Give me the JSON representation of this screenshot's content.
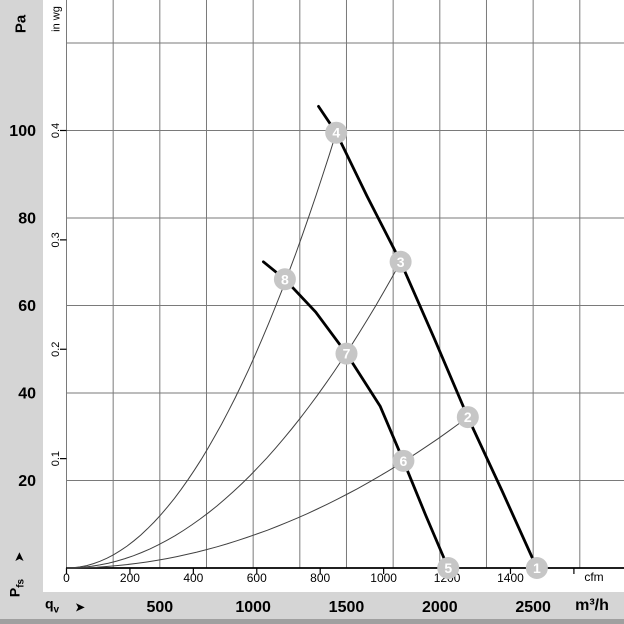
{
  "colors": {
    "band_gray": "#d5d5d5",
    "bottom_edge_gray": "#a0a0a0",
    "grid": "#7a7a7a",
    "baseline": "#000000",
    "tick": "#000000",
    "fan_curve": "#000000",
    "parabola": "#404040",
    "marker_fill": "#c6c6c6",
    "marker_text": "#ffffff",
    "label_text": "#000000"
  },
  "icons": {
    "qv_arrow": "➤",
    "pfs_arrow": "➤"
  },
  "chart_data": {
    "type": "line",
    "title": "",
    "description": "Fan performance curves: static pressure vs. volume flow, two speeds, with system resistance parabolas and numbered operating points",
    "axes": {
      "pa": {
        "unit": "Pa",
        "ticks": [
          20,
          40,
          60,
          80,
          100
        ],
        "grid_step": 20,
        "grid_max": 120,
        "range": [
          0,
          130
        ]
      },
      "inwg": {
        "unit": "in wg",
        "ticks": [
          0.1,
          0.2,
          0.3,
          0.4
        ],
        "pa_per_inwg": 250
      },
      "m3h": {
        "unit": "m³/h",
        "ticks": [
          500,
          1000,
          1500,
          2000,
          2500
        ],
        "grid_step": 250,
        "range": [
          0,
          2990
        ]
      },
      "cfm": {
        "unit": "cfm",
        "ticks": [
          0,
          200,
          400,
          600,
          800,
          1000,
          1200,
          1400
        ],
        "unlabeled_ticks": [
          1600
        ],
        "m3h_per_cfm": 1.699
      }
    },
    "ylabel": {
      "base": "P",
      "sub": "fs"
    },
    "xlabel": {
      "base": "q",
      "sub": "v"
    },
    "series": [
      {
        "name": "fan-curve-high-speed",
        "style": "thick",
        "points": [
          [
            1350,
            105.5
          ],
          [
            1445,
            99.5
          ],
          [
            1610,
            85
          ],
          [
            1790,
            70
          ],
          [
            1970,
            52.5
          ],
          [
            2150,
            34.5
          ],
          [
            2335,
            17.5
          ],
          [
            2520,
            0
          ]
        ]
      },
      {
        "name": "fan-curve-low-speed",
        "style": "thick",
        "points": [
          [
            1055,
            70
          ],
          [
            1170,
            66
          ],
          [
            1335,
            58.5
          ],
          [
            1500,
            49
          ],
          [
            1680,
            37
          ],
          [
            1805,
            24.5
          ],
          [
            1925,
            12
          ],
          [
            2045,
            0
          ]
        ]
      },
      {
        "name": "system-parabola-a",
        "style": "parabola",
        "end_q_m3h": 1445,
        "end_p_pa": 99.5
      },
      {
        "name": "system-parabola-b",
        "style": "parabola",
        "end_q_m3h": 1790,
        "end_p_pa": 70
      },
      {
        "name": "system-parabola-c",
        "style": "parabola",
        "end_q_m3h": 2150,
        "end_p_pa": 34.5
      }
    ],
    "operating_points": [
      {
        "label": "1",
        "q_m3h": 2520,
        "p_pa": 0
      },
      {
        "label": "2",
        "q_m3h": 2150,
        "p_pa": 34.5
      },
      {
        "label": "3",
        "q_m3h": 1790,
        "p_pa": 70
      },
      {
        "label": "4",
        "q_m3h": 1445,
        "p_pa": 99.5
      },
      {
        "label": "5",
        "q_m3h": 2045,
        "p_pa": 0
      },
      {
        "label": "6",
        "q_m3h": 1805,
        "p_pa": 24.5
      },
      {
        "label": "7",
        "q_m3h": 1500,
        "p_pa": 49
      },
      {
        "label": "8",
        "q_m3h": 1170,
        "p_pa": 66
      }
    ],
    "legend": "none",
    "grid": "on"
  }
}
